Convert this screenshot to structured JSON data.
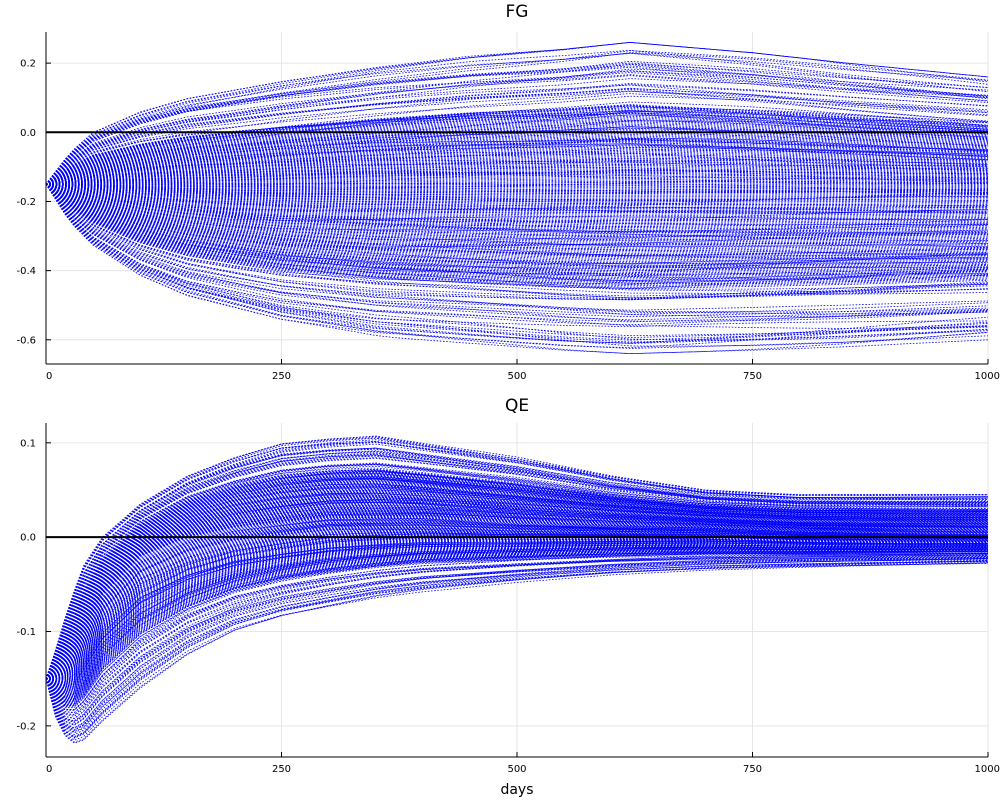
{
  "chart_data": [
    {
      "type": "line",
      "title": "FG",
      "xlabel": "",
      "ylabel": "",
      "xlim": [
        0,
        1000
      ],
      "ylim": [
        -0.67,
        0.29
      ],
      "xticks": [
        0,
        250,
        500,
        750,
        1000
      ],
      "xtick_labels": [
        "0",
        "250",
        "500",
        "750",
        "1000"
      ],
      "yticks": [
        -0.6,
        -0.4,
        -0.2,
        0.0,
        0.2
      ],
      "ytick_labels": [
        "-0.6",
        "-0.4",
        "-0.2",
        "0.0",
        "0.2"
      ],
      "grid": true,
      "legend": "none",
      "series_color": "#0000ff",
      "reference_line": {
        "y": 0.0,
        "color": "#000000"
      },
      "series_count_note": "hundreds of simulated paths",
      "envelope": {
        "x": [
          0,
          25,
          50,
          100,
          150,
          250,
          350,
          450,
          550,
          620,
          750,
          850,
          1000
        ],
        "upper": [
          -0.15,
          -0.06,
          0.0,
          0.06,
          0.1,
          0.15,
          0.19,
          0.22,
          0.24,
          0.26,
          0.23,
          0.2,
          0.16
        ],
        "lower": [
          -0.15,
          -0.26,
          -0.33,
          -0.42,
          -0.48,
          -0.55,
          -0.59,
          -0.61,
          -0.63,
          -0.64,
          -0.63,
          -0.62,
          -0.6
        ]
      },
      "median": {
        "x": [
          0,
          50,
          100,
          200,
          300,
          400,
          500,
          600,
          700,
          800,
          900,
          1000
        ],
        "y": [
          -0.15,
          -0.16,
          -0.17,
          -0.18,
          -0.18,
          -0.18,
          -0.18,
          -0.18,
          -0.18,
          -0.18,
          -0.18,
          -0.18
        ]
      }
    },
    {
      "type": "line",
      "title": "QE",
      "xlabel": "days",
      "ylabel": "",
      "xlim": [
        0,
        1000
      ],
      "ylim": [
        -0.233,
        0.121
      ],
      "xticks": [
        0,
        250,
        500,
        750,
        1000
      ],
      "xtick_labels": [
        "0",
        "250",
        "500",
        "750",
        "1000"
      ],
      "yticks": [
        -0.2,
        -0.1,
        0.0,
        0.1
      ],
      "ytick_labels": [
        "-0.2",
        "-0.1",
        "0.0",
        "0.1"
      ],
      "grid": true,
      "legend": "none",
      "series_color": "#0000ff",
      "reference_line": {
        "y": 0.0,
        "color": "#000000"
      },
      "envelope": {
        "x": [
          0,
          10,
          25,
          40,
          60,
          100,
          150,
          200,
          250,
          300,
          350,
          400,
          500,
          600,
          700,
          800,
          900,
          1000
        ],
        "upper": [
          -0.15,
          -0.12,
          -0.07,
          -0.03,
          0.0,
          0.035,
          0.065,
          0.085,
          0.1,
          0.105,
          0.108,
          0.1,
          0.085,
          0.065,
          0.05,
          0.045,
          0.045,
          0.045
        ],
        "lower": [
          -0.15,
          -0.19,
          -0.22,
          -0.215,
          -0.195,
          -0.16,
          -0.125,
          -0.1,
          -0.085,
          -0.075,
          -0.065,
          -0.058,
          -0.048,
          -0.04,
          -0.035,
          -0.032,
          -0.03,
          -0.028
        ]
      },
      "median": {
        "x": [
          0,
          25,
          60,
          100,
          150,
          200,
          300,
          400,
          500,
          600,
          700,
          800,
          900,
          1000
        ],
        "y": [
          -0.15,
          -0.13,
          -0.06,
          -0.02,
          0.0,
          0.01,
          0.02,
          0.02,
          0.015,
          0.012,
          0.01,
          0.006,
          0.004,
          0.003
        ]
      }
    }
  ]
}
